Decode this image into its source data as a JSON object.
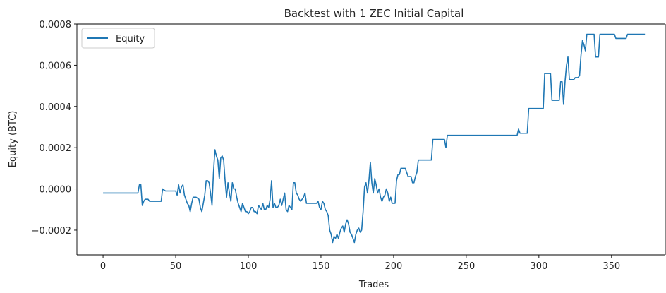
{
  "chart_data": {
    "type": "line",
    "title": "Backtest with 1 ZEC Initial Capital",
    "xlabel": "Trades",
    "ylabel": "Equity (BTC)",
    "xlim": [
      -18,
      387
    ],
    "ylim": [
      -0.00032,
      0.0008
    ],
    "xticks": [
      0,
      50,
      100,
      150,
      200,
      250,
      300,
      350
    ],
    "xtick_labels": [
      "0",
      "50",
      "100",
      "150",
      "200",
      "250",
      "300",
      "350"
    ],
    "yticks": [
      -0.0002,
      0.0,
      0.0002,
      0.0004,
      0.0006,
      0.0008
    ],
    "ytick_labels": [
      "−0.0002",
      "0.0000",
      "0.0002",
      "0.0004",
      "0.0006",
      "0.0008"
    ],
    "legend": {
      "position": "top-left",
      "entries": [
        "Equity"
      ]
    },
    "grid": false,
    "series": [
      {
        "name": "Equity",
        "color": "#1f77b4",
        "points": [
          [
            0,
            -2e-05
          ],
          [
            12,
            -2e-05
          ],
          [
            24,
            -2e-05
          ],
          [
            25,
            2e-05
          ],
          [
            26,
            2e-05
          ],
          [
            27,
            -8e-05
          ],
          [
            28,
            -6e-05
          ],
          [
            29,
            -5e-05
          ],
          [
            31,
            -5e-05
          ],
          [
            32,
            -6e-05
          ],
          [
            35,
            -6e-05
          ],
          [
            38,
            -6e-05
          ],
          [
            40,
            -6e-05
          ],
          [
            41,
            0.0
          ],
          [
            43,
            -1e-05
          ],
          [
            46,
            -1e-05
          ],
          [
            50,
            -1e-05
          ],
          [
            51,
            -3e-05
          ],
          [
            52,
            2e-05
          ],
          [
            53,
            -2e-05
          ],
          [
            54,
            1e-05
          ],
          [
            55,
            2e-05
          ],
          [
            56,
            -3e-05
          ],
          [
            57,
            -5e-05
          ],
          [
            58,
            -7e-05
          ],
          [
            59,
            -8e-05
          ],
          [
            60,
            -0.00011
          ],
          [
            61,
            -7e-05
          ],
          [
            62,
            -4e-05
          ],
          [
            64,
            -4e-05
          ],
          [
            66,
            -5e-05
          ],
          [
            67,
            -9e-05
          ],
          [
            68,
            -0.00011
          ],
          [
            69,
            -7e-05
          ],
          [
            70,
            -3e-05
          ],
          [
            71,
            4e-05
          ],
          [
            72,
            4e-05
          ],
          [
            73,
            3e-05
          ],
          [
            74,
            -2e-05
          ],
          [
            75,
            -8e-05
          ],
          [
            76,
            8e-05
          ],
          [
            77,
            0.00019
          ],
          [
            78,
            0.00016
          ],
          [
            79,
            0.00014
          ],
          [
            80,
            5e-05
          ],
          [
            81,
            0.00015
          ],
          [
            82,
            0.00016
          ],
          [
            83,
            0.00014
          ],
          [
            84,
            4e-05
          ],
          [
            85,
            -4e-05
          ],
          [
            86,
            3e-05
          ],
          [
            87,
            -2e-05
          ],
          [
            88,
            -6e-05
          ],
          [
            89,
            3e-05
          ],
          [
            90,
            0.0
          ],
          [
            91,
            0.0
          ],
          [
            92,
            -4e-05
          ],
          [
            93,
            -7e-05
          ],
          [
            94,
            -9e-05
          ],
          [
            95,
            -0.00011
          ],
          [
            96,
            -7e-05
          ],
          [
            97,
            -9e-05
          ],
          [
            98,
            -0.00011
          ],
          [
            99,
            -0.00011
          ],
          [
            100,
            -0.00012
          ],
          [
            101,
            -0.00011
          ],
          [
            102,
            -9e-05
          ],
          [
            103,
            -9e-05
          ],
          [
            104,
            -0.00011
          ],
          [
            105,
            -0.00011
          ],
          [
            106,
            -0.00012
          ],
          [
            107,
            -8e-05
          ],
          [
            108,
            -9e-05
          ],
          [
            109,
            -0.0001
          ],
          [
            110,
            -7e-05
          ],
          [
            111,
            -0.0001
          ],
          [
            112,
            -0.0001
          ],
          [
            113,
            -8e-05
          ],
          [
            114,
            -9e-05
          ],
          [
            115,
            -5e-05
          ],
          [
            116,
            4e-05
          ],
          [
            117,
            -9e-05
          ],
          [
            118,
            -7e-05
          ],
          [
            119,
            -9e-05
          ],
          [
            120,
            -9e-05
          ],
          [
            121,
            -8e-05
          ],
          [
            122,
            -5e-05
          ],
          [
            123,
            -8e-05
          ],
          [
            124,
            -5e-05
          ],
          [
            125,
            -2e-05
          ],
          [
            126,
            -0.0001
          ],
          [
            127,
            -0.00011
          ],
          [
            128,
            -8e-05
          ],
          [
            129,
            -9e-05
          ],
          [
            130,
            -0.0001
          ],
          [
            131,
            3e-05
          ],
          [
            132,
            3e-05
          ],
          [
            133,
            -2e-05
          ],
          [
            134,
            -3e-05
          ],
          [
            135,
            -5e-05
          ],
          [
            136,
            -6e-05
          ],
          [
            137,
            -5e-05
          ],
          [
            138,
            -4e-05
          ],
          [
            139,
            -2e-05
          ],
          [
            140,
            -7e-05
          ],
          [
            141,
            -7e-05
          ],
          [
            142,
            -7e-05
          ],
          [
            143,
            -7e-05
          ],
          [
            145,
            -7e-05
          ],
          [
            147,
            -7e-05
          ],
          [
            148,
            -6e-05
          ],
          [
            149,
            -9e-05
          ],
          [
            150,
            -0.0001
          ],
          [
            151,
            -6e-05
          ],
          [
            152,
            -7e-05
          ],
          [
            153,
            -0.0001
          ],
          [
            154,
            -0.00011
          ],
          [
            155,
            -0.00013
          ],
          [
            156,
            -0.0002
          ],
          [
            157,
            -0.00022
          ],
          [
            158,
            -0.00026
          ],
          [
            159,
            -0.00023
          ],
          [
            160,
            -0.00024
          ],
          [
            161,
            -0.00022
          ],
          [
            162,
            -0.00024
          ],
          [
            163,
            -0.00021
          ],
          [
            164,
            -0.00019
          ],
          [
            165,
            -0.00018
          ],
          [
            166,
            -0.00021
          ],
          [
            167,
            -0.00017
          ],
          [
            168,
            -0.00015
          ],
          [
            169,
            -0.00017
          ],
          [
            170,
            -0.00021
          ],
          [
            171,
            -0.00022
          ],
          [
            172,
            -0.00024
          ],
          [
            173,
            -0.00026
          ],
          [
            174,
            -0.00022
          ],
          [
            175,
            -0.0002
          ],
          [
            176,
            -0.00019
          ],
          [
            177,
            -0.00021
          ],
          [
            178,
            -0.0002
          ],
          [
            179,
            -0.00011
          ],
          [
            180,
            1e-05
          ],
          [
            181,
            3e-05
          ],
          [
            182,
            -2e-05
          ],
          [
            183,
            4e-05
          ],
          [
            184,
            0.00013
          ],
          [
            185,
            3e-05
          ],
          [
            186,
            -2e-05
          ],
          [
            187,
            5e-05
          ],
          [
            188,
            2e-05
          ],
          [
            189,
            -2e-05
          ],
          [
            190,
            0.0
          ],
          [
            191,
            -4e-05
          ],
          [
            192,
            -6e-05
          ],
          [
            193,
            -4e-05
          ],
          [
            194,
            -3e-05
          ],
          [
            195,
            0.0
          ],
          [
            196,
            -2e-05
          ],
          [
            197,
            -6e-05
          ],
          [
            198,
            -4e-05
          ],
          [
            199,
            -7e-05
          ],
          [
            200,
            -7e-05
          ],
          [
            201,
            -7e-05
          ],
          [
            202,
            4e-05
          ],
          [
            203,
            7e-05
          ],
          [
            204,
            7e-05
          ],
          [
            205,
            0.0001
          ],
          [
            206,
            0.0001
          ],
          [
            208,
            0.0001
          ],
          [
            209,
            8e-05
          ],
          [
            210,
            6e-05
          ],
          [
            212,
            6e-05
          ],
          [
            213,
            3e-05
          ],
          [
            214,
            3e-05
          ],
          [
            215,
            6e-05
          ],
          [
            216,
            8e-05
          ],
          [
            217,
            0.00014
          ],
          [
            220,
            0.00014
          ],
          [
            224,
            0.00014
          ],
          [
            226,
            0.00014
          ],
          [
            227,
            0.00024
          ],
          [
            230,
            0.00024
          ],
          [
            235,
            0.00024
          ],
          [
            236,
            0.0002
          ],
          [
            237,
            0.00026
          ],
          [
            240,
            0.00026
          ],
          [
            260,
            0.00026
          ],
          [
            280,
            0.00026
          ],
          [
            285,
            0.00026
          ],
          [
            286,
            0.00029
          ],
          [
            287,
            0.00027
          ],
          [
            288,
            0.00027
          ],
          [
            292,
            0.00027
          ],
          [
            293,
            0.00039
          ],
          [
            296,
            0.00039
          ],
          [
            302,
            0.00039
          ],
          [
            303,
            0.00039
          ],
          [
            304,
            0.00056
          ],
          [
            308,
            0.00056
          ],
          [
            309,
            0.00043
          ],
          [
            314,
            0.00043
          ],
          [
            315,
            0.00052
          ],
          [
            316,
            0.00052
          ],
          [
            317,
            0.00041
          ],
          [
            318,
            0.00052
          ],
          [
            319,
            0.0006
          ],
          [
            320,
            0.00064
          ],
          [
            321,
            0.00053
          ],
          [
            324,
            0.00053
          ],
          [
            325,
            0.00054
          ],
          [
            327,
            0.00054
          ],
          [
            328,
            0.00055
          ],
          [
            329,
            0.00065
          ],
          [
            330,
            0.00072
          ],
          [
            331,
            0.0007
          ],
          [
            332,
            0.00067
          ],
          [
            333,
            0.00075
          ],
          [
            337,
            0.00075
          ],
          [
            338,
            0.00075
          ],
          [
            339,
            0.00064
          ],
          [
            341,
            0.00064
          ],
          [
            342,
            0.00075
          ],
          [
            346,
            0.00075
          ],
          [
            352,
            0.00075
          ],
          [
            353,
            0.00073
          ],
          [
            360,
            0.00073
          ],
          [
            361,
            0.00075
          ],
          [
            365,
            0.00075
          ],
          [
            366,
            0.00075
          ],
          [
            373,
            0.00075
          ]
        ]
      }
    ]
  }
}
